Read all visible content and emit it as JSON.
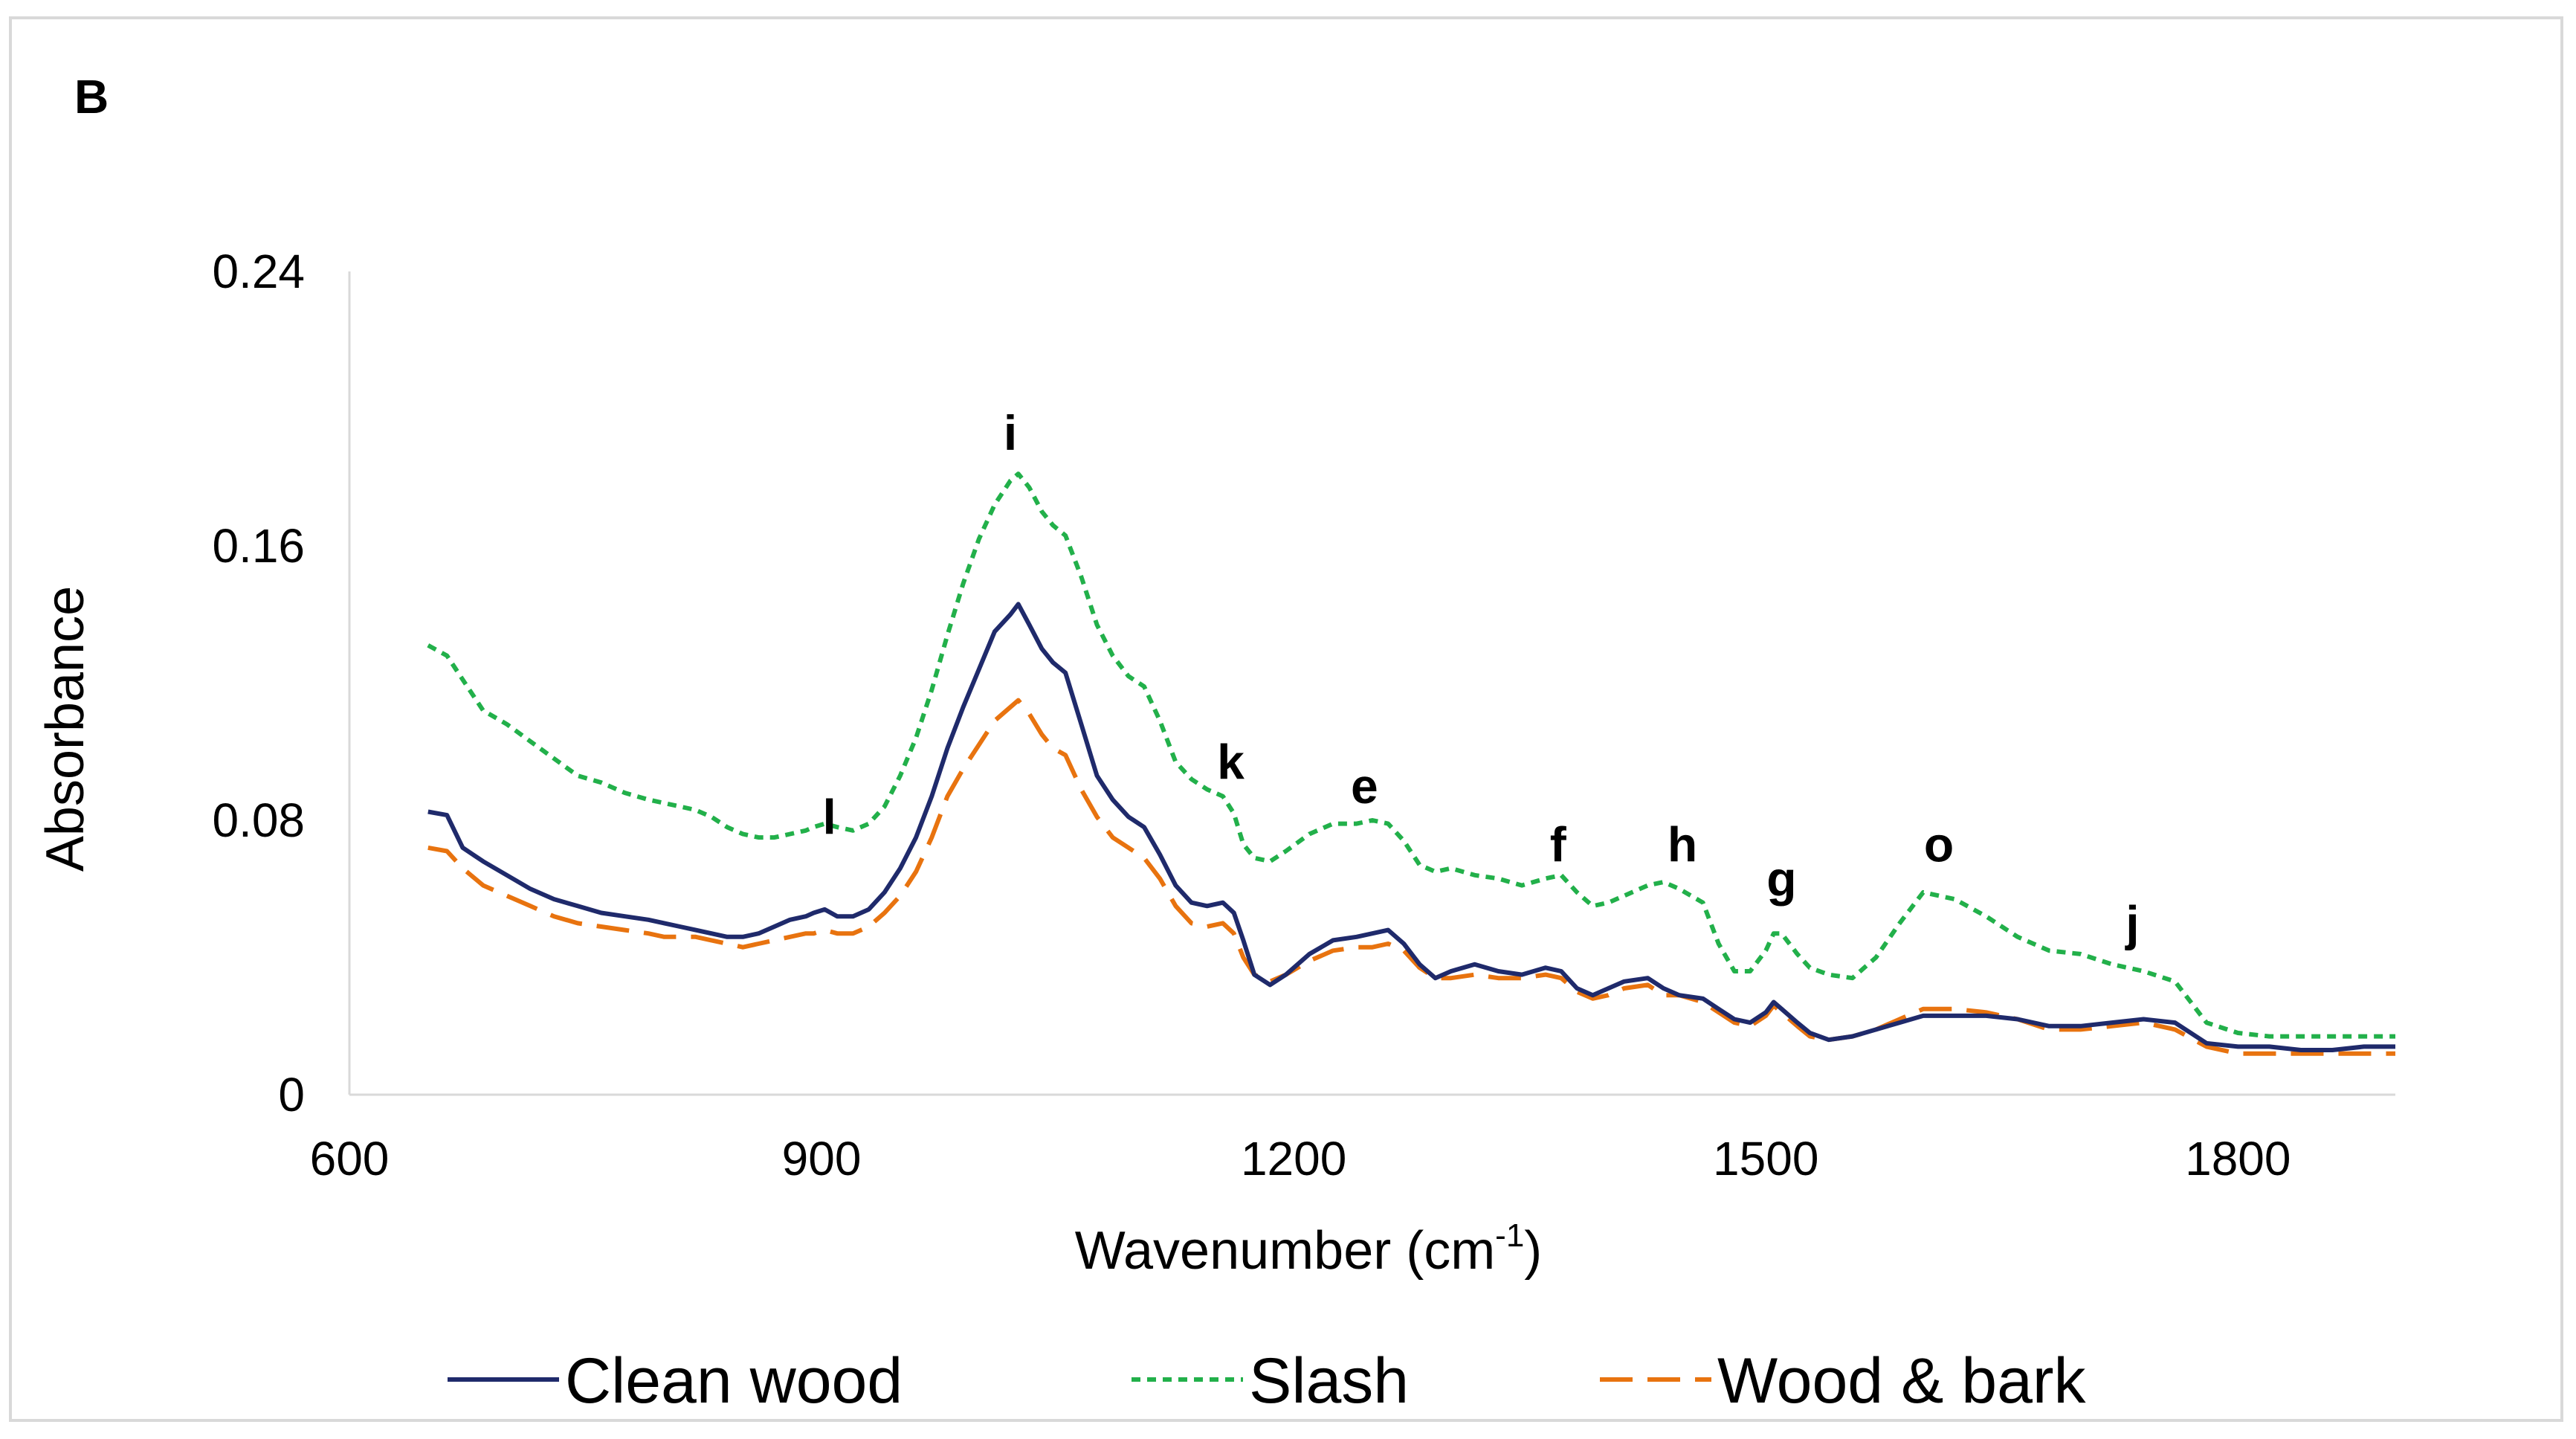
{
  "panel_label": "B",
  "chart_data": {
    "type": "line",
    "xlabel": "Wavenumber  (cm",
    "xlabel_sup": "-1",
    "xlabel_tail": ")",
    "ylabel": "Absorbance",
    "xlim": [
      600,
      1900
    ],
    "ylim": [
      0,
      0.24
    ],
    "xticks": [
      600,
      900,
      1200,
      1500,
      1800
    ],
    "yticks": [
      0,
      0.08,
      0.16,
      0.24
    ],
    "xtick_labels": [
      "600",
      "900",
      "1200",
      "1500",
      "1800"
    ],
    "ytick_labels": [
      "0",
      "0.08",
      "0.16",
      "0.24"
    ],
    "grid": false,
    "legend_position": "bottom",
    "series": [
      {
        "name": "Clean wood",
        "color": "#1f2a6b",
        "dash": "solid",
        "x": [
          650,
          662,
          672,
          685,
          700,
          715,
          730,
          745,
          760,
          775,
          790,
          800,
          810,
          820,
          830,
          840,
          850,
          860,
          870,
          880,
          890,
          895,
          902,
          910,
          920,
          930,
          940,
          950,
          960,
          970,
          980,
          990,
          1000,
          1010,
          1020,
          1025,
          1032,
          1040,
          1047,
          1055,
          1065,
          1075,
          1085,
          1095,
          1105,
          1115,
          1125,
          1135,
          1145,
          1155,
          1162,
          1168,
          1175,
          1185,
          1195,
          1210,
          1225,
          1240,
          1250,
          1260,
          1270,
          1280,
          1290,
          1300,
          1315,
          1330,
          1345,
          1360,
          1370,
          1380,
          1390,
          1400,
          1410,
          1425,
          1435,
          1445,
          1460,
          1470,
          1480,
          1490,
          1500,
          1505,
          1510,
          1520,
          1528,
          1540,
          1555,
          1570,
          1585,
          1600,
          1620,
          1640,
          1660,
          1680,
          1700,
          1720,
          1740,
          1760,
          1780,
          1800,
          1820,
          1840,
          1860,
          1880,
          1900
        ],
        "y": [
          0.0825,
          0.0815,
          0.072,
          0.068,
          0.064,
          0.06,
          0.057,
          0.055,
          0.053,
          0.052,
          0.051,
          0.05,
          0.049,
          0.048,
          0.047,
          0.046,
          0.046,
          0.047,
          0.049,
          0.051,
          0.052,
          0.053,
          0.054,
          0.052,
          0.052,
          0.054,
          0.059,
          0.066,
          0.075,
          0.087,
          0.101,
          0.113,
          0.124,
          0.135,
          0.14,
          0.143,
          0.137,
          0.13,
          0.126,
          0.123,
          0.108,
          0.093,
          0.086,
          0.081,
          0.078,
          0.07,
          0.061,
          0.056,
          0.055,
          0.056,
          0.053,
          0.045,
          0.035,
          0.032,
          0.035,
          0.041,
          0.045,
          0.046,
          0.047,
          0.048,
          0.044,
          0.038,
          0.034,
          0.036,
          0.038,
          0.036,
          0.035,
          0.037,
          0.036,
          0.031,
          0.029,
          0.031,
          0.033,
          0.034,
          0.031,
          0.029,
          0.028,
          0.025,
          0.022,
          0.021,
          0.024,
          0.027,
          0.025,
          0.021,
          0.018,
          0.016,
          0.017,
          0.019,
          0.021,
          0.023,
          0.023,
          0.023,
          0.022,
          0.02,
          0.02,
          0.021,
          0.022,
          0.021,
          0.015,
          0.014,
          0.014,
          0.013,
          0.013,
          0.014,
          0.014
        ]
      },
      {
        "name": "Slash",
        "color": "#22b04a",
        "dash": "short",
        "x": [
          650,
          662,
          672,
          685,
          700,
          715,
          730,
          745,
          760,
          775,
          790,
          800,
          810,
          820,
          830,
          840,
          850,
          860,
          870,
          880,
          890,
          895,
          902,
          910,
          920,
          930,
          940,
          950,
          960,
          970,
          980,
          990,
          1000,
          1010,
          1020,
          1025,
          1032,
          1040,
          1047,
          1055,
          1065,
          1075,
          1085,
          1095,
          1105,
          1115,
          1125,
          1135,
          1145,
          1155,
          1162,
          1168,
          1175,
          1185,
          1195,
          1210,
          1225,
          1240,
          1250,
          1260,
          1270,
          1280,
          1290,
          1300,
          1315,
          1330,
          1345,
          1360,
          1370,
          1380,
          1390,
          1400,
          1410,
          1425,
          1435,
          1445,
          1460,
          1470,
          1480,
          1490,
          1500,
          1505,
          1510,
          1520,
          1528,
          1540,
          1555,
          1570,
          1585,
          1600,
          1620,
          1640,
          1660,
          1680,
          1700,
          1720,
          1740,
          1760,
          1780,
          1800,
          1820,
          1840,
          1860,
          1880,
          1900
        ],
        "y": [
          0.131,
          0.128,
          0.121,
          0.112,
          0.108,
          0.103,
          0.098,
          0.093,
          0.091,
          0.088,
          0.086,
          0.085,
          0.084,
          0.083,
          0.081,
          0.078,
          0.076,
          0.075,
          0.075,
          0.076,
          0.077,
          0.078,
          0.079,
          0.078,
          0.077,
          0.079,
          0.084,
          0.093,
          0.104,
          0.118,
          0.134,
          0.149,
          0.162,
          0.172,
          0.179,
          0.181,
          0.177,
          0.17,
          0.166,
          0.163,
          0.151,
          0.137,
          0.128,
          0.122,
          0.119,
          0.109,
          0.097,
          0.092,
          0.089,
          0.087,
          0.082,
          0.073,
          0.069,
          0.068,
          0.071,
          0.076,
          0.079,
          0.079,
          0.08,
          0.079,
          0.074,
          0.067,
          0.065,
          0.066,
          0.064,
          0.063,
          0.061,
          0.063,
          0.064,
          0.059,
          0.055,
          0.056,
          0.058,
          0.061,
          0.062,
          0.06,
          0.056,
          0.044,
          0.036,
          0.036,
          0.042,
          0.047,
          0.047,
          0.041,
          0.037,
          0.035,
          0.034,
          0.04,
          0.05,
          0.059,
          0.057,
          0.052,
          0.046,
          0.042,
          0.041,
          0.038,
          0.036,
          0.033,
          0.021,
          0.018,
          0.017,
          0.017,
          0.017,
          0.017,
          0.017
        ]
      },
      {
        "name": "Wood & bark",
        "color": "#e8730f",
        "dash": "long",
        "x": [
          650,
          662,
          672,
          685,
          700,
          715,
          730,
          745,
          760,
          775,
          790,
          800,
          810,
          820,
          830,
          840,
          850,
          860,
          870,
          880,
          890,
          895,
          902,
          910,
          920,
          930,
          940,
          950,
          960,
          970,
          980,
          990,
          1000,
          1010,
          1020,
          1025,
          1032,
          1040,
          1047,
          1055,
          1065,
          1075,
          1085,
          1095,
          1105,
          1115,
          1125,
          1135,
          1145,
          1155,
          1162,
          1168,
          1175,
          1185,
          1195,
          1210,
          1225,
          1240,
          1250,
          1260,
          1270,
          1280,
          1290,
          1300,
          1315,
          1330,
          1345,
          1360,
          1370,
          1380,
          1390,
          1400,
          1410,
          1425,
          1435,
          1445,
          1460,
          1470,
          1480,
          1490,
          1500,
          1505,
          1510,
          1520,
          1528,
          1540,
          1555,
          1570,
          1585,
          1600,
          1620,
          1640,
          1660,
          1680,
          1700,
          1720,
          1740,
          1760,
          1780,
          1800,
          1820,
          1840,
          1860,
          1880,
          1900
        ],
        "y": [
          0.072,
          0.071,
          0.066,
          0.061,
          0.058,
          0.055,
          0.052,
          0.05,
          0.049,
          0.048,
          0.047,
          0.046,
          0.046,
          0.046,
          0.045,
          0.044,
          0.043,
          0.044,
          0.045,
          0.046,
          0.047,
          0.047,
          0.048,
          0.047,
          0.047,
          0.049,
          0.053,
          0.058,
          0.065,
          0.075,
          0.087,
          0.095,
          0.102,
          0.109,
          0.113,
          0.115,
          0.111,
          0.105,
          0.101,
          0.099,
          0.089,
          0.081,
          0.075,
          0.072,
          0.069,
          0.063,
          0.055,
          0.05,
          0.049,
          0.05,
          0.047,
          0.04,
          0.035,
          0.033,
          0.035,
          0.039,
          0.042,
          0.043,
          0.043,
          0.044,
          0.042,
          0.037,
          0.034,
          0.034,
          0.035,
          0.034,
          0.034,
          0.035,
          0.034,
          0.03,
          0.028,
          0.029,
          0.031,
          0.032,
          0.029,
          0.029,
          0.027,
          0.024,
          0.021,
          0.02,
          0.023,
          0.026,
          0.024,
          0.02,
          0.017,
          0.016,
          0.017,
          0.019,
          0.022,
          0.025,
          0.025,
          0.024,
          0.022,
          0.019,
          0.019,
          0.02,
          0.021,
          0.019,
          0.014,
          0.012,
          0.012,
          0.012,
          0.012,
          0.012,
          0.012
        ]
      }
    ],
    "annotations": [
      {
        "text": "l",
        "x": 905,
        "y": 0.076
      },
      {
        "text": "i",
        "x": 1020,
        "y": 0.188
      },
      {
        "text": "k",
        "x": 1160,
        "y": 0.092
      },
      {
        "text": "e",
        "x": 1245,
        "y": 0.085
      },
      {
        "text": "f",
        "x": 1368,
        "y": 0.068
      },
      {
        "text": "h",
        "x": 1447,
        "y": 0.068
      },
      {
        "text": "g",
        "x": 1510,
        "y": 0.058
      },
      {
        "text": "o",
        "x": 1610,
        "y": 0.068
      },
      {
        "text": "j",
        "x": 1733,
        "y": 0.045
      }
    ]
  }
}
